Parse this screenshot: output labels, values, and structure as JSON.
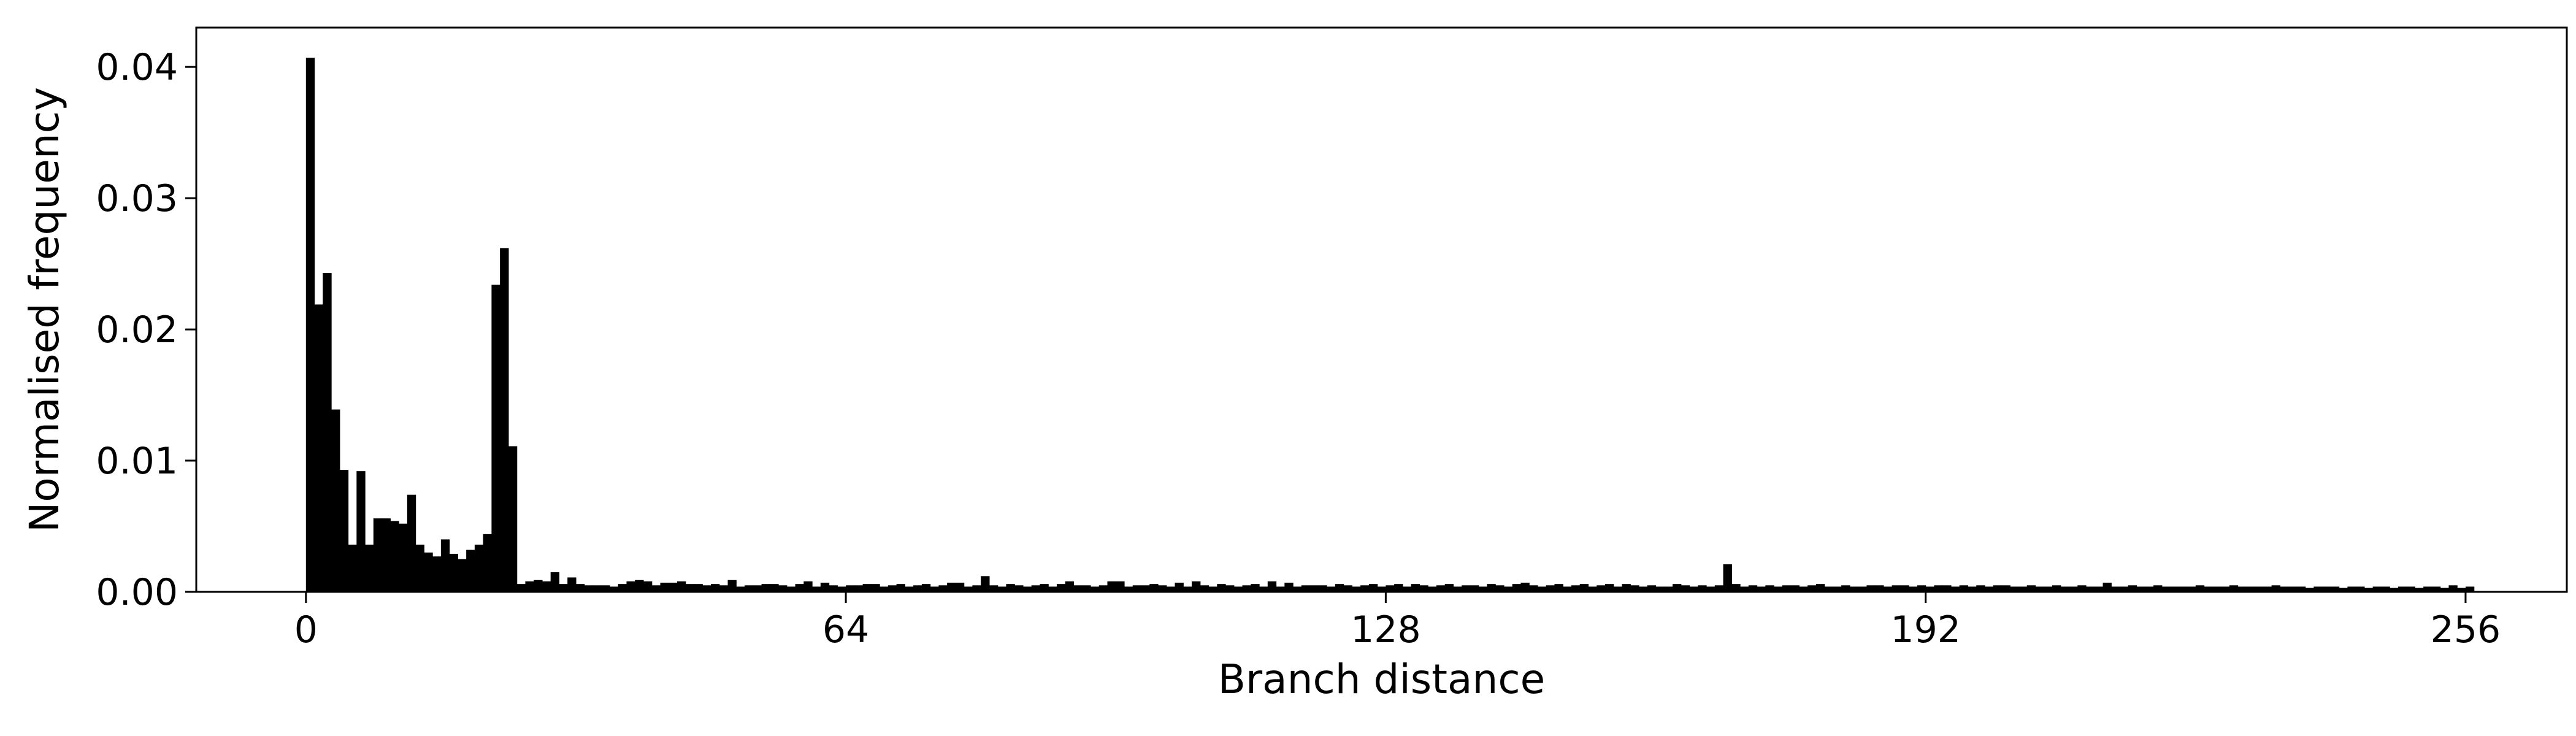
{
  "chart_data": {
    "type": "bar",
    "title": "",
    "xlabel": "Branch distance",
    "ylabel": "Normalised frequency",
    "xlim": [
      -13,
      268
    ],
    "ylim": [
      0,
      0.043
    ],
    "x_ticks": [
      0,
      64,
      128,
      192,
      256
    ],
    "y_ticks": [
      0.0,
      0.01,
      0.02,
      0.03,
      0.04
    ],
    "y_tick_labels": [
      "0.00",
      "0.01",
      "0.02",
      "0.03",
      "0.04"
    ],
    "grid": false,
    "legend": "none",
    "bar_color": "#000000",
    "bin_width": 1,
    "x": [
      0,
      1,
      2,
      3,
      4,
      5,
      6,
      7,
      8,
      9,
      10,
      11,
      12,
      13,
      14,
      15,
      16,
      17,
      18,
      19,
      20,
      21,
      22,
      23,
      24,
      25,
      26,
      27,
      28,
      29,
      30,
      31,
      32,
      33,
      34,
      35,
      36,
      37,
      38,
      39,
      40,
      41,
      42,
      43,
      44,
      45,
      46,
      47,
      48,
      49,
      50,
      51,
      52,
      53,
      54,
      55,
      56,
      57,
      58,
      59,
      60,
      61,
      62,
      63,
      64,
      65,
      66,
      67,
      68,
      69,
      70,
      71,
      72,
      73,
      74,
      75,
      76,
      77,
      78,
      79,
      80,
      81,
      82,
      83,
      84,
      85,
      86,
      87,
      88,
      89,
      90,
      91,
      92,
      93,
      94,
      95,
      96,
      97,
      98,
      99,
      100,
      101,
      102,
      103,
      104,
      105,
      106,
      107,
      108,
      109,
      110,
      111,
      112,
      113,
      114,
      115,
      116,
      117,
      118,
      119,
      120,
      121,
      122,
      123,
      124,
      125,
      126,
      127,
      128,
      129,
      130,
      131,
      132,
      133,
      134,
      135,
      136,
      137,
      138,
      139,
      140,
      141,
      142,
      143,
      144,
      145,
      146,
      147,
      148,
      149,
      150,
      151,
      152,
      153,
      154,
      155,
      156,
      157,
      158,
      159,
      160,
      161,
      162,
      163,
      164,
      165,
      166,
      167,
      168,
      169,
      170,
      171,
      172,
      173,
      174,
      175,
      176,
      177,
      178,
      179,
      180,
      181,
      182,
      183,
      184,
      185,
      186,
      187,
      188,
      189,
      190,
      191,
      192,
      193,
      194,
      195,
      196,
      197,
      198,
      199,
      200,
      201,
      202,
      203,
      204,
      205,
      206,
      207,
      208,
      209,
      210,
      211,
      212,
      213,
      214,
      215,
      216,
      217,
      218,
      219,
      220,
      221,
      222,
      223,
      224,
      225,
      226,
      227,
      228,
      229,
      230,
      231,
      232,
      233,
      234,
      235,
      236,
      237,
      238,
      239,
      240,
      241,
      242,
      243,
      244,
      245,
      246,
      247,
      248,
      249,
      250,
      251,
      252,
      253,
      254,
      255,
      256
    ],
    "values": [
      0.0407,
      0.0219,
      0.0243,
      0.0139,
      0.0093,
      0.0036,
      0.0092,
      0.0036,
      0.0056,
      0.0056,
      0.0054,
      0.0052,
      0.0074,
      0.0036,
      0.003,
      0.0027,
      0.004,
      0.0029,
      0.0025,
      0.0032,
      0.0036,
      0.0044,
      0.0234,
      0.0262,
      0.0111,
      0.0006,
      0.0008,
      0.0009,
      0.0008,
      0.0015,
      0.0006,
      0.0011,
      0.0006,
      0.0005,
      0.0005,
      0.0005,
      0.0004,
      0.0006,
      0.0008,
      0.0009,
      0.0008,
      0.0005,
      0.0007,
      0.0007,
      0.0008,
      0.0006,
      0.0006,
      0.0005,
      0.0006,
      0.0005,
      0.0009,
      0.0004,
      0.0005,
      0.0005,
      0.0006,
      0.0006,
      0.0005,
      0.0004,
      0.0006,
      0.0008,
      0.0004,
      0.0007,
      0.0005,
      0.0004,
      0.0005,
      0.0005,
      0.0006,
      0.0006,
      0.0004,
      0.0005,
      0.0006,
      0.0004,
      0.0005,
      0.0006,
      0.0004,
      0.0005,
      0.0007,
      0.0007,
      0.0004,
      0.0005,
      0.0012,
      0.0005,
      0.0004,
      0.0006,
      0.0005,
      0.0004,
      0.0005,
      0.0006,
      0.0004,
      0.0006,
      0.0008,
      0.0005,
      0.0005,
      0.0004,
      0.0005,
      0.0008,
      0.0008,
      0.0004,
      0.0005,
      0.0005,
      0.0006,
      0.0005,
      0.0004,
      0.0007,
      0.0004,
      0.0008,
      0.0005,
      0.0004,
      0.0006,
      0.0005,
      0.0004,
      0.0005,
      0.0006,
      0.0004,
      0.0008,
      0.0004,
      0.0007,
      0.0004,
      0.0005,
      0.0005,
      0.0005,
      0.0004,
      0.0006,
      0.0005,
      0.0004,
      0.0005,
      0.0006,
      0.0004,
      0.0005,
      0.0006,
      0.0004,
      0.0006,
      0.0005,
      0.0004,
      0.0005,
      0.0006,
      0.0004,
      0.0005,
      0.0005,
      0.0004,
      0.0006,
      0.0005,
      0.0004,
      0.0006,
      0.0007,
      0.0005,
      0.0004,
      0.0005,
      0.0006,
      0.0004,
      0.0005,
      0.0006,
      0.0004,
      0.0005,
      0.0006,
      0.0004,
      0.0006,
      0.0005,
      0.0004,
      0.0005,
      0.0004,
      0.0004,
      0.0006,
      0.0005,
      0.0004,
      0.0005,
      0.0004,
      0.0005,
      0.0021,
      0.0006,
      0.0004,
      0.0005,
      0.0004,
      0.0005,
      0.0004,
      0.0005,
      0.0005,
      0.0004,
      0.0005,
      0.0006,
      0.0004,
      0.0004,
      0.0005,
      0.0004,
      0.0004,
      0.0005,
      0.0005,
      0.0004,
      0.0005,
      0.0005,
      0.0004,
      0.0005,
      0.0004,
      0.0005,
      0.0005,
      0.0004,
      0.0005,
      0.0004,
      0.0005,
      0.0004,
      0.0005,
      0.0005,
      0.0004,
      0.0004,
      0.0005,
      0.0004,
      0.0004,
      0.0005,
      0.0004,
      0.0004,
      0.0005,
      0.0004,
      0.0004,
      0.0007,
      0.0004,
      0.0004,
      0.0005,
      0.0004,
      0.0004,
      0.0005,
      0.0004,
      0.0004,
      0.0004,
      0.0004,
      0.0005,
      0.0004,
      0.0004,
      0.0004,
      0.0005,
      0.0004,
      0.0004,
      0.0004,
      0.0004,
      0.0005,
      0.0004,
      0.0004,
      0.0004,
      0.0003,
      0.0004,
      0.0004,
      0.0004,
      0.0003,
      0.0004,
      0.0004,
      0.0003,
      0.0004,
      0.0004,
      0.0003,
      0.0004,
      0.0004,
      0.0003,
      0.0004,
      0.0004,
      0.0003,
      0.0005,
      0.0003,
      0.0004
    ]
  }
}
